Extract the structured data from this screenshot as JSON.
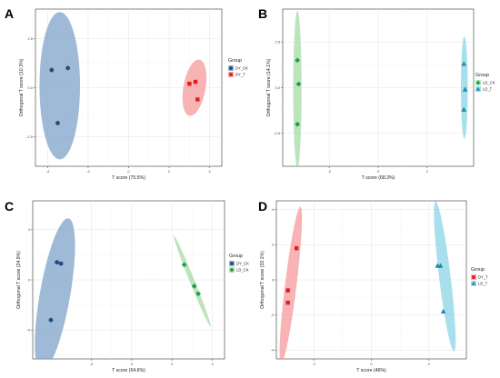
{
  "chart_data": [
    {
      "panel": "A",
      "type": "scatter",
      "xlabel": "T score (75.5%)",
      "ylabel": "Orthogonal T score (10.3%)",
      "xlim": [
        -4.6,
        4.6
      ],
      "ylim": [
        -4.0,
        4.0
      ],
      "xticks": [
        -4,
        -2,
        0,
        2,
        4
      ],
      "yticks": [
        -2.5,
        0.0,
        2.5
      ],
      "ytick_labels": [
        "-2.5",
        "0.0",
        "2.5"
      ],
      "grid": true,
      "legend_title": "Group",
      "legend_position": "right",
      "series": [
        {
          "name": "DY_CK",
          "marker": "circle",
          "color": "#1f4e8c",
          "fill": "#7ea3c8",
          "x": [
            -3.8,
            -3.0,
            -3.5
          ],
          "y": [
            0.9,
            1.0,
            -1.8
          ],
          "ellipse": {
            "cx": -3.4,
            "cy": 0.1,
            "rx": 1.0,
            "ry": 3.75,
            "angle": 0
          }
        },
        {
          "name": "DY_T",
          "marker": "square",
          "color": "#e41a1c",
          "fill": "#f59a9b",
          "x": [
            3.0,
            3.3,
            3.4
          ],
          "y": [
            0.2,
            0.3,
            -0.6
          ],
          "ellipse": {
            "cx": 3.25,
            "cy": 0.0,
            "rx": 0.55,
            "ry": 1.45,
            "angle": 10
          }
        }
      ]
    },
    {
      "panel": "B",
      "type": "scatter",
      "xlabel": "T score (68.3%)",
      "ylabel": "Orthogonal T score (14.1%)",
      "xlim": [
        -3.9,
        3.9
      ],
      "ylim": [
        -4.3,
        4.3
      ],
      "xticks": [
        -2,
        0,
        2
      ],
      "yticks": [
        -2.5,
        0.0,
        2.5
      ],
      "ytick_labels": [
        "-2.5",
        "0.0",
        "2.5"
      ],
      "grid": true,
      "legend_title": "Group",
      "legend_position": "right",
      "series": [
        {
          "name": "LD_CK",
          "marker": "diamond",
          "color": "#229a46",
          "fill": "#a3dca7",
          "x": [
            -3.3,
            -3.25,
            -3.3
          ],
          "y": [
            1.5,
            0.2,
            -2.0
          ],
          "ellipse": {
            "cx": -3.3,
            "cy": -0.1,
            "rx": 0.17,
            "ry": 4.3,
            "angle": 0
          }
        },
        {
          "name": "LD_T",
          "marker": "triangle",
          "color": "#1b8fa7",
          "fill": "#8bd4e5",
          "x": [
            3.5,
            3.55,
            3.5
          ],
          "y": [
            1.3,
            -0.1,
            -1.2
          ],
          "ellipse": {
            "cx": 3.52,
            "cy": 0.0,
            "rx": 0.14,
            "ry": 2.8,
            "angle": 0
          }
        }
      ]
    },
    {
      "panel": "C",
      "type": "scatter",
      "xlabel": "T score (64.6%)",
      "ylabel": "Orthogonal T score (24.9%)",
      "xlim": [
        -4.9,
        4.6
      ],
      "ylim": [
        -6.3,
        6.3
      ],
      "xticks": [
        -2,
        0,
        2,
        4
      ],
      "yticks": [
        -4,
        0,
        4
      ],
      "ytick_labels": [
        "-4",
        "0",
        "4"
      ],
      "grid": true,
      "legend_title": "Group",
      "legend_position": "right",
      "series": [
        {
          "name": "DY_CK",
          "marker": "circle",
          "color": "#1f4e8c",
          "fill": "#7ea3c8",
          "x": [
            -3.7,
            -3.5,
            -4.0
          ],
          "y": [
            1.4,
            1.3,
            -3.2
          ],
          "ellipse": {
            "cx": -3.8,
            "cy": -1.2,
            "rx": 0.75,
            "ry": 6.2,
            "angle": 10
          }
        },
        {
          "name": "LD_CK",
          "marker": "diamond",
          "color": "#229a46",
          "fill": "#a3dca7",
          "x": [
            2.6,
            3.1,
            3.3
          ],
          "y": [
            1.2,
            -0.5,
            -1.1
          ],
          "ellipse": {
            "cx": 3.0,
            "cy": -0.1,
            "rx": 0.12,
            "ry": 3.9,
            "angle": -22
          }
        }
      ]
    },
    {
      "panel": "D",
      "type": "scatter",
      "xlabel": "T score (46%)",
      "ylabel": "Orthogonal T score (32.1%)",
      "xlim": [
        -3.3,
        3.3
      ],
      "ylim": [
        -4.5,
        4.5
      ],
      "xticks": [
        -2,
        0,
        2
      ],
      "yticks": [
        -4,
        -2,
        0,
        2,
        4
      ],
      "ytick_labels": [
        "-4",
        "-2",
        "0",
        "2",
        "4"
      ],
      "grid": true,
      "legend_title": "Group",
      "legend_position": "right",
      "series": [
        {
          "name": "DY_T",
          "marker": "square",
          "color": "#e41a1c",
          "fill": "#f59a9b",
          "x": [
            -2.6,
            -2.9,
            -2.9
          ],
          "y": [
            1.8,
            -0.6,
            -1.3
          ],
          "ellipse": {
            "cx": -2.8,
            "cy": -0.3,
            "rx": 0.2,
            "ry": 4.5,
            "angle": 7
          }
        },
        {
          "name": "LD_T",
          "marker": "triangle",
          "color": "#1b8fa7",
          "fill": "#8bd4e5",
          "x": [
            2.3,
            2.4,
            2.5
          ],
          "y": [
            0.8,
            0.8,
            -1.8
          ],
          "ellipse": {
            "cx": 2.55,
            "cy": 0.2,
            "rx": 0.2,
            "ry": 4.3,
            "angle": -7
          }
        }
      ]
    }
  ]
}
